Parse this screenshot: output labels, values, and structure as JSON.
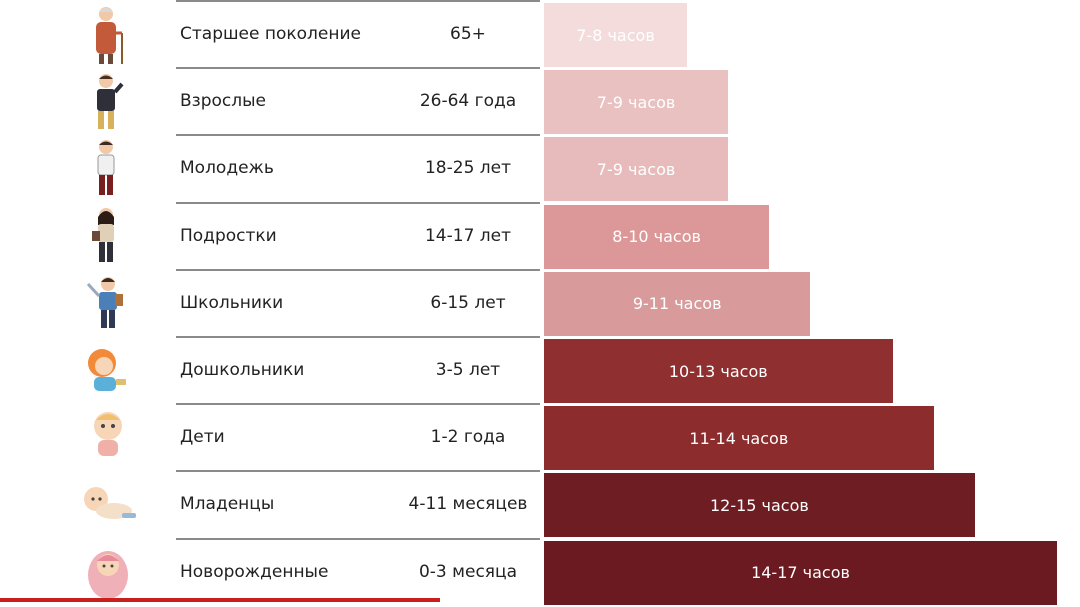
{
  "chart_data": {
    "type": "table",
    "title": "",
    "columns": [
      "group",
      "age",
      "sleep"
    ],
    "rows": [
      {
        "group": "Старшее поколение",
        "age": "65+",
        "sleep": "7-8 часов",
        "hours": [
          7,
          8
        ],
        "icon": "elderly-person-icon",
        "color": "#f4dcdc"
      },
      {
        "group": "Взрослые",
        "age": "26-64 года",
        "sleep": "7-9 часов",
        "hours": [
          7,
          9
        ],
        "icon": "adult-person-icon",
        "color": "#e9c1c1"
      },
      {
        "group": "Молодежь",
        "age": "18-25 лет",
        "sleep": "7-9 часов",
        "hours": [
          7,
          9
        ],
        "icon": "young-person-icon",
        "color": "#e7bbbb"
      },
      {
        "group": "Подростки",
        "age": "14-17 лет",
        "sleep": "8-10 часов",
        "hours": [
          8,
          10
        ],
        "icon": "teenager-icon",
        "color": "#dc9898"
      },
      {
        "group": "Школьники",
        "age": "6-15 лет",
        "sleep": "9-11 часов",
        "hours": [
          9,
          11
        ],
        "icon": "schoolchild-icon",
        "color": "#d89a9a"
      },
      {
        "group": "Дошкольники",
        "age": "3-5 лет",
        "sleep": "10-13 часов",
        "hours": [
          10,
          13
        ],
        "icon": "preschooler-icon",
        "color": "#8f2f30"
      },
      {
        "group": "Дети",
        "age": "1-2 года",
        "sleep": "11-14 часов",
        "hours": [
          11,
          14
        ],
        "icon": "toddler-icon",
        "color": "#8c2c2d"
      },
      {
        "group": "Младенцы",
        "age": "4-11 месяцев",
        "sleep": "12-15 часов",
        "hours": [
          12,
          15
        ],
        "icon": "infant-icon",
        "color": "#6e1e22"
      },
      {
        "group": "Новорожденные",
        "age": "0-3 месяца",
        "sleep": "14-17 часов",
        "hours": [
          14,
          17
        ],
        "icon": "newborn-icon",
        "color": "#6a1a20"
      }
    ]
  }
}
